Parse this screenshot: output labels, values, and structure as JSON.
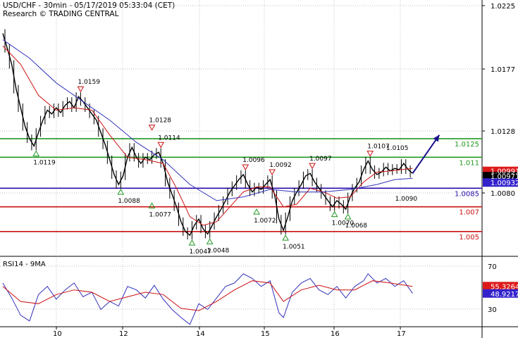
{
  "header": {
    "title": "USD/CHF - 30min - 05/17/2019 05:33:04 (CET)",
    "subtitle": "Research © TRADING CENTRAL"
  },
  "colors": {
    "green": "#229922",
    "red": "#cc1111",
    "purple": "#2a0aa8",
    "tag_red": "#dd1a1a",
    "tag_black": "#000000",
    "tag_blue": "#3322cc",
    "arrow": "#1a0f8c",
    "price": "#000000",
    "ma_red": "#cc1111",
    "ma_blue": "#3333bb",
    "grid": "#aaaaaa"
  },
  "chart_data": [
    {
      "type": "line",
      "title": "USD/CHF - 30min",
      "x_ticks": [
        "10",
        "12",
        "14",
        "15",
        "16",
        "17"
      ],
      "y_ticks": [
        "1.0225",
        "1.0177",
        "1.0128",
        "1.0080"
      ],
      "ylim": [
        1.003,
        1.0237
      ],
      "price_path": [
        [
          0,
          1.021
        ],
        [
          4,
          1.0198
        ],
        [
          8,
          1.0185
        ],
        [
          12,
          1.0165
        ],
        [
          16,
          1.015
        ],
        [
          20,
          1.0135
        ],
        [
          24,
          1.0125
        ],
        [
          28,
          1.0119
        ],
        [
          32,
          1.013
        ],
        [
          36,
          1.014
        ],
        [
          40,
          1.0148
        ],
        [
          44,
          1.0145
        ],
        [
          48,
          1.015
        ],
        [
          52,
          1.0146
        ],
        [
          56,
          1.0152
        ],
        [
          60,
          1.0155
        ],
        [
          64,
          1.015
        ],
        [
          68,
          1.0159
        ],
        [
          72,
          1.0155
        ],
        [
          76,
          1.015
        ],
        [
          80,
          1.0145
        ],
        [
          84,
          1.014
        ],
        [
          88,
          1.013
        ],
        [
          92,
          1.012
        ],
        [
          96,
          1.0108
        ],
        [
          100,
          1.0096
        ],
        [
          104,
          1.0088
        ],
        [
          108,
          1.0095
        ],
        [
          112,
          1.011
        ],
        [
          116,
          1.0118
        ],
        [
          120,
          1.011
        ],
        [
          124,
          1.0105
        ],
        [
          128,
          1.011
        ],
        [
          132,
          1.0108
        ],
        [
          136,
          1.0112
        ],
        [
          140,
          1.0114
        ],
        [
          144,
          1.0105
        ],
        [
          148,
          1.009
        ],
        [
          152,
          1.008
        ],
        [
          156,
          1.007
        ],
        [
          160,
          1.0058
        ],
        [
          164,
          1.005
        ],
        [
          168,
          1.0047
        ],
        [
          172,
          1.0055
        ],
        [
          176,
          1.006
        ],
        [
          180,
          1.0052
        ],
        [
          184,
          1.0048
        ],
        [
          188,
          1.0055
        ],
        [
          192,
          1.0062
        ],
        [
          196,
          1.0068
        ],
        [
          200,
          1.0075
        ],
        [
          204,
          1.0082
        ],
        [
          208,
          1.0087
        ],
        [
          212,
          1.0092
        ],
        [
          216,
          1.0096
        ],
        [
          220,
          1.0088
        ],
        [
          224,
          1.0082
        ],
        [
          228,
          1.0086
        ],
        [
          232,
          1.0084
        ],
        [
          236,
          1.0088
        ],
        [
          240,
          1.0092
        ],
        [
          244,
          1.008
        ],
        [
          248,
          1.006
        ],
        [
          252,
          1.0051
        ],
        [
          256,
          1.0062
        ],
        [
          260,
          1.0075
        ],
        [
          264,
          1.0082
        ],
        [
          268,
          1.0088
        ],
        [
          272,
          1.0095
        ],
        [
          276,
          1.0097
        ],
        [
          280,
          1.009
        ],
        [
          284,
          1.0085
        ],
        [
          288,
          1.008
        ],
        [
          292,
          1.0075
        ],
        [
          296,
          1.007
        ],
        [
          300,
          1.0075
        ],
        [
          304,
          1.0072
        ],
        [
          308,
          1.0068
        ],
        [
          312,
          1.0078
        ],
        [
          316,
          1.0085
        ],
        [
          320,
          1.009
        ],
        [
          324,
          1.01
        ],
        [
          328,
          1.0107
        ],
        [
          332,
          1.01
        ],
        [
          336,
          1.0096
        ],
        [
          340,
          1.0098
        ],
        [
          344,
          1.0102
        ],
        [
          348,
          1.0099
        ],
        [
          352,
          1.0101
        ],
        [
          356,
          1.01
        ],
        [
          360,
          1.0105
        ],
        [
          364,
          1.01
        ],
        [
          368,
          1.0097
        ]
      ],
      "ma_red_path": [
        [
          0,
          1.02
        ],
        [
          16,
          1.0185
        ],
        [
          32,
          1.016
        ],
        [
          48,
          1.0148
        ],
        [
          64,
          1.015
        ],
        [
          80,
          1.0148
        ],
        [
          96,
          1.0128
        ],
        [
          112,
          1.011
        ],
        [
          128,
          1.0108
        ],
        [
          144,
          1.0105
        ],
        [
          156,
          1.0085
        ],
        [
          168,
          1.0062
        ],
        [
          180,
          1.0055
        ],
        [
          192,
          1.0058
        ],
        [
          204,
          1.007
        ],
        [
          216,
          1.0082
        ],
        [
          228,
          1.0086
        ],
        [
          240,
          1.0086
        ],
        [
          252,
          1.007
        ],
        [
          264,
          1.0072
        ],
        [
          276,
          1.0085
        ],
        [
          288,
          1.0082
        ],
        [
          300,
          1.0077
        ],
        [
          312,
          1.0078
        ],
        [
          324,
          1.009
        ],
        [
          336,
          1.0098
        ],
        [
          348,
          1.0099
        ],
        [
          368,
          1.0101
        ]
      ],
      "ma_blue_path": [
        [
          0,
          1.0205
        ],
        [
          24,
          1.019
        ],
        [
          48,
          1.017
        ],
        [
          72,
          1.0155
        ],
        [
          96,
          1.014
        ],
        [
          120,
          1.0122
        ],
        [
          144,
          1.0108
        ],
        [
          168,
          1.0088
        ],
        [
          192,
          1.0075
        ],
        [
          216,
          1.0078
        ],
        [
          240,
          1.0084
        ],
        [
          264,
          1.0082
        ],
        [
          288,
          1.0082
        ],
        [
          312,
          1.0084
        ],
        [
          336,
          1.0088
        ],
        [
          352,
          1.0092
        ],
        [
          368,
          1.0093
        ]
      ],
      "levels": [
        {
          "value": 1.0125,
          "label": "1.0125",
          "color": "green"
        },
        {
          "value": 1.011,
          "label": "1.011",
          "color": "green"
        },
        {
          "value": 1.0085,
          "label": "1.0085",
          "color": "purple"
        },
        {
          "value": 1.007,
          "label": "1.007",
          "color": "red"
        },
        {
          "value": 1.005,
          "label": "1.005",
          "color": "red"
        }
      ],
      "price_tags": [
        {
          "value": 1.0099,
          "label": "1.00991",
          "color": "tag_red"
        },
        {
          "value": 1.0097,
          "label": "1.00971",
          "color": "tag_black"
        },
        {
          "value": 1.0093,
          "label": "1.00932",
          "color": "tag_blue"
        }
      ],
      "annotations": [
        {
          "label": "1.0159",
          "kind": "high",
          "x": 68,
          "value": 1.0159
        },
        {
          "label": "1.0128",
          "kind": "high",
          "x": 132,
          "value": 1.0128
        },
        {
          "label": "1.0114",
          "kind": "high",
          "x": 140,
          "value": 1.0114
        },
        {
          "label": "1.0096",
          "kind": "high",
          "x": 216,
          "value": 1.0096
        },
        {
          "label": "1.0092",
          "kind": "high",
          "x": 240,
          "value": 1.0092
        },
        {
          "label": "1.0097",
          "kind": "high",
          "x": 276,
          "value": 1.0097
        },
        {
          "label": "1.0107",
          "kind": "high",
          "x": 328,
          "value": 1.0107
        },
        {
          "label": "1.0105",
          "kind": "plain",
          "x": 350,
          "value": 1.0116
        },
        {
          "label": "1.0090",
          "kind": "plain",
          "x": 358,
          "value": 1.0075
        },
        {
          "label": "1.0119",
          "kind": "low",
          "x": 28,
          "value": 1.0119
        },
        {
          "label": "1.0088",
          "kind": "low",
          "x": 104,
          "value": 1.0088
        },
        {
          "label": "1.0077",
          "kind": "low",
          "x": 132,
          "value": 1.0077
        },
        {
          "label": "1.0047",
          "kind": "low",
          "x": 168,
          "value": 1.0047
        },
        {
          "label": "1.0048",
          "kind": "low",
          "x": 184,
          "value": 1.0048
        },
        {
          "label": "1.0072",
          "kind": "low",
          "x": 226,
          "value": 1.0072
        },
        {
          "label": "1.0051",
          "kind": "low",
          "x": 252,
          "value": 1.0051
        },
        {
          "label": "1.0070",
          "kind": "low",
          "x": 296,
          "value": 1.007
        },
        {
          "label": "1.0068",
          "kind": "low",
          "x": 308,
          "value": 1.0068
        }
      ],
      "forecast_arrow": {
        "from": [
          368,
          1.0097
        ],
        "to": [
          392,
          1.0128
        ]
      }
    },
    {
      "type": "line",
      "title": "RSI14 - 9MA",
      "y_ticks": [
        "70",
        "30"
      ],
      "ylim": [
        20,
        80
      ],
      "rsi_path": [
        [
          0,
          58
        ],
        [
          8,
          45
        ],
        [
          16,
          30
        ],
        [
          24,
          25
        ],
        [
          32,
          48
        ],
        [
          40,
          55
        ],
        [
          48,
          44
        ],
        [
          56,
          52
        ],
        [
          64,
          58
        ],
        [
          72,
          46
        ],
        [
          80,
          50
        ],
        [
          88,
          35
        ],
        [
          96,
          42
        ],
        [
          104,
          38
        ],
        [
          112,
          55
        ],
        [
          120,
          52
        ],
        [
          128,
          45
        ],
        [
          136,
          56
        ],
        [
          144,
          44
        ],
        [
          152,
          35
        ],
        [
          160,
          28
        ],
        [
          168,
          22
        ],
        [
          176,
          40
        ],
        [
          184,
          35
        ],
        [
          192,
          45
        ],
        [
          200,
          55
        ],
        [
          208,
          58
        ],
        [
          216,
          66
        ],
        [
          224,
          62
        ],
        [
          232,
          55
        ],
        [
          240,
          60
        ],
        [
          248,
          32
        ],
        [
          252,
          28
        ],
        [
          260,
          50
        ],
        [
          268,
          58
        ],
        [
          276,
          62
        ],
        [
          284,
          52
        ],
        [
          292,
          48
        ],
        [
          300,
          55
        ],
        [
          308,
          45
        ],
        [
          316,
          55
        ],
        [
          324,
          60
        ],
        [
          328,
          66
        ],
        [
          336,
          58
        ],
        [
          344,
          62
        ],
        [
          352,
          55
        ],
        [
          360,
          60
        ],
        [
          368,
          49
        ]
      ],
      "ma_path": [
        [
          0,
          55
        ],
        [
          16,
          42
        ],
        [
          32,
          40
        ],
        [
          48,
          48
        ],
        [
          64,
          52
        ],
        [
          80,
          50
        ],
        [
          96,
          42
        ],
        [
          112,
          46
        ],
        [
          128,
          50
        ],
        [
          144,
          48
        ],
        [
          160,
          36
        ],
        [
          176,
          34
        ],
        [
          192,
          42
        ],
        [
          208,
          52
        ],
        [
          224,
          60
        ],
        [
          240,
          58
        ],
        [
          252,
          42
        ],
        [
          268,
          52
        ],
        [
          284,
          56
        ],
        [
          300,
          52
        ],
        [
          316,
          52
        ],
        [
          332,
          60
        ],
        [
          348,
          58
        ],
        [
          368,
          55
        ]
      ],
      "tags": [
        {
          "value": 55.3264,
          "label": "55.3264",
          "color": "tag_red"
        },
        {
          "value": 48.9217,
          "label": "48.9217",
          "color": "tag_blue"
        }
      ]
    }
  ]
}
